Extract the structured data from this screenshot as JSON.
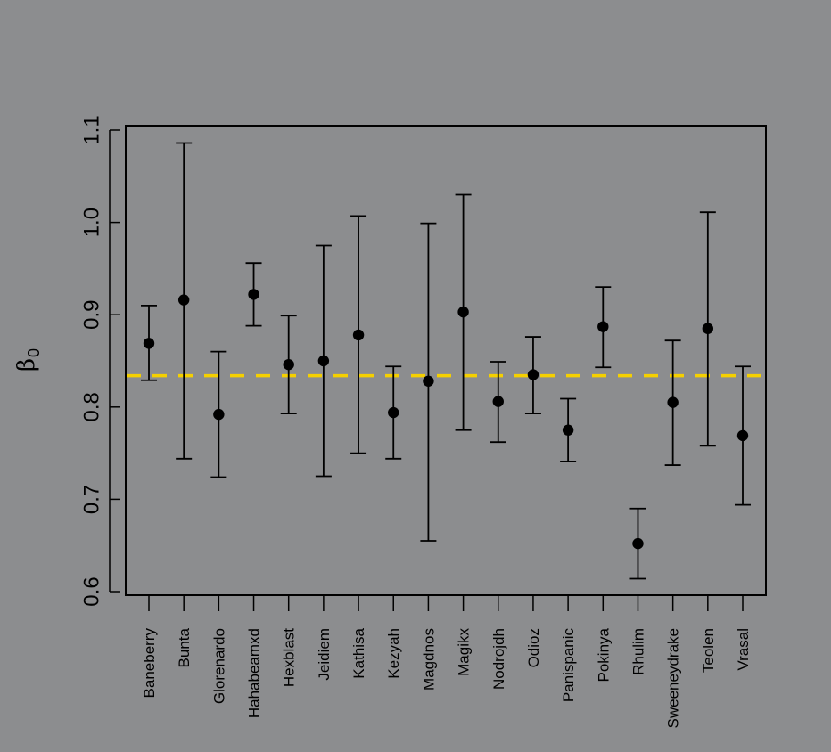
{
  "chart_data": {
    "type": "scatter",
    "subtype": "point-with-error-bars",
    "title": "",
    "xlabel": "",
    "ylabel": "β0",
    "ylabel_symbol": "β",
    "ylabel_subscript": "0",
    "ylim": [
      0.6,
      1.1
    ],
    "yticks": [
      0.6,
      0.7,
      0.8,
      0.9,
      1.0,
      1.1
    ],
    "ytick_labels": [
      "0.6",
      "0.7",
      "0.8",
      "0.9",
      "1.0",
      "1.1"
    ],
    "categories": [
      "Baneberry",
      "Bunta",
      "Glorenardo",
      "Hahabeamxd",
      "Hexblast",
      "Jeidiem",
      "Kathisa",
      "Kezyah",
      "Magdnos",
      "Magikx",
      "Nodrojdh",
      "Odioz",
      "Panispanic",
      "Pokinya",
      "Rhulim",
      "Sweeneydrake",
      "Teolen",
      "Vrasal"
    ],
    "values": [
      0.869,
      0.916,
      0.792,
      0.922,
      0.846,
      0.85,
      0.878,
      0.794,
      0.828,
      0.903,
      0.806,
      0.835,
      0.775,
      0.887,
      0.652,
      0.805,
      0.885,
      0.769
    ],
    "upper": [
      0.91,
      1.086,
      0.86,
      0.956,
      0.899,
      0.975,
      1.007,
      0.844,
      0.999,
      1.03,
      0.849,
      0.876,
      0.809,
      0.93,
      0.69,
      0.872,
      1.011,
      0.844
    ],
    "lower": [
      0.829,
      0.744,
      0.724,
      0.888,
      0.793,
      0.725,
      0.75,
      0.744,
      0.655,
      0.775,
      0.762,
      0.793,
      0.741,
      0.843,
      0.614,
      0.737,
      0.758,
      0.694
    ],
    "reference_line": {
      "y": 0.834,
      "style": "dashed",
      "color": "#f5d000"
    },
    "grid": false,
    "legend": "none",
    "colors": {
      "background": "#8c8d8f",
      "points": "#000000",
      "axes": "#000000"
    }
  }
}
